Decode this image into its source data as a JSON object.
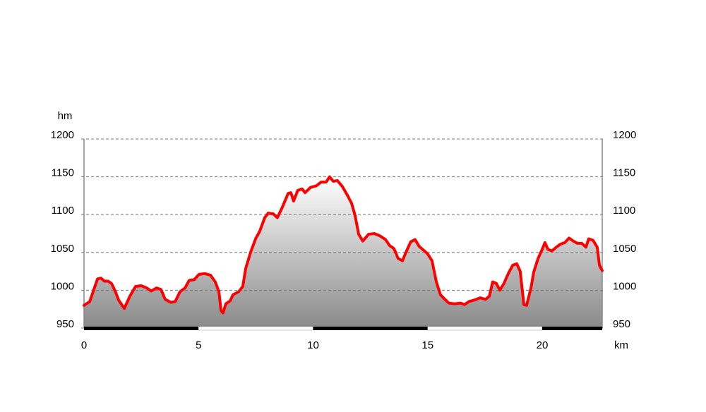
{
  "chart_data": {
    "type": "area",
    "y_axis_label": "hm",
    "x_axis_label": "km",
    "x": [
      0,
      0.25,
      0.43,
      0.59,
      0.74,
      0.89,
      1.05,
      1.2,
      1.36,
      1.51,
      1.76,
      2.0,
      2.25,
      2.5,
      2.74,
      2.93,
      3.17,
      3.36,
      3.54,
      3.79,
      3.98,
      4.19,
      4.41,
      4.59,
      4.81,
      5.02,
      5.27,
      5.52,
      5.73,
      5.89,
      5.98,
      6.07,
      6.19,
      6.38,
      6.5,
      6.75,
      6.93,
      7.06,
      7.27,
      7.49,
      7.67,
      7.89,
      8.04,
      8.26,
      8.44,
      8.66,
      8.91,
      9.03,
      9.15,
      9.33,
      9.52,
      9.65,
      9.89,
      10.14,
      10.35,
      10.57,
      10.72,
      10.88,
      11.06,
      11.28,
      11.49,
      11.68,
      11.83,
      11.99,
      12.17,
      12.42,
      12.67,
      12.91,
      13.16,
      13.34,
      13.53,
      13.71,
      13.9,
      14.08,
      14.26,
      14.45,
      14.63,
      14.82,
      15.0,
      15.19,
      15.38,
      15.56,
      15.75,
      15.93,
      16.18,
      16.43,
      16.61,
      16.8,
      17.04,
      17.29,
      17.53,
      17.69,
      17.84,
      18.0,
      18.15,
      18.33,
      18.52,
      18.71,
      18.89,
      19.04,
      19.2,
      19.32,
      19.51,
      19.63,
      19.82,
      20.0,
      20.12,
      20.25,
      20.43,
      20.62,
      20.8,
      20.99,
      21.17,
      21.36,
      21.54,
      21.73,
      21.91,
      22.03,
      22.22,
      22.4,
      22.5,
      22.62
    ],
    "values": [
      980,
      985,
      1001,
      1015,
      1016,
      1012,
      1012,
      1009,
      999,
      987,
      976,
      992,
      1005,
      1006,
      1003,
      999,
      1003,
      1001,
      988,
      984,
      985,
      998,
      1003,
      1013,
      1014,
      1021,
      1022,
      1020,
      1011,
      998,
      973,
      970,
      982,
      986,
      994,
      998,
      1005,
      1029,
      1050,
      1068,
      1078,
      1096,
      1102,
      1101,
      1096,
      1110,
      1128,
      1129,
      1118,
      1132,
      1134,
      1129,
      1136,
      1138,
      1143,
      1143,
      1150,
      1144,
      1145,
      1137,
      1126,
      1115,
      1099,
      1074,
      1065,
      1074,
      1075,
      1072,
      1067,
      1059,
      1055,
      1042,
      1039,
      1052,
      1064,
      1067,
      1058,
      1053,
      1048,
      1039,
      1011,
      994,
      988,
      983,
      982,
      983,
      981,
      985,
      987,
      990,
      988,
      992,
      1011,
      1009,
      1000,
      1009,
      1022,
      1033,
      1035,
      1025,
      981,
      980,
      1003,
      1024,
      1042,
      1054,
      1063,
      1054,
      1052,
      1057,
      1061,
      1063,
      1069,
      1065,
      1062,
      1062,
      1057,
      1068,
      1066,
      1057,
      1033,
      1026
    ],
    "color": "#ff0000",
    "xlim": [
      0,
      22.62
    ],
    "xticks": [
      0,
      5,
      10,
      15,
      20
    ],
    "ylim": [
      950,
      1200
    ],
    "yticks": [
      950,
      1000,
      1050,
      1100,
      1150,
      1200
    ],
    "y2lim": [
      950,
      1200
    ],
    "y2ticks": [
      950,
      1000,
      1050,
      1100,
      1150,
      1200
    ],
    "grid": true
  }
}
